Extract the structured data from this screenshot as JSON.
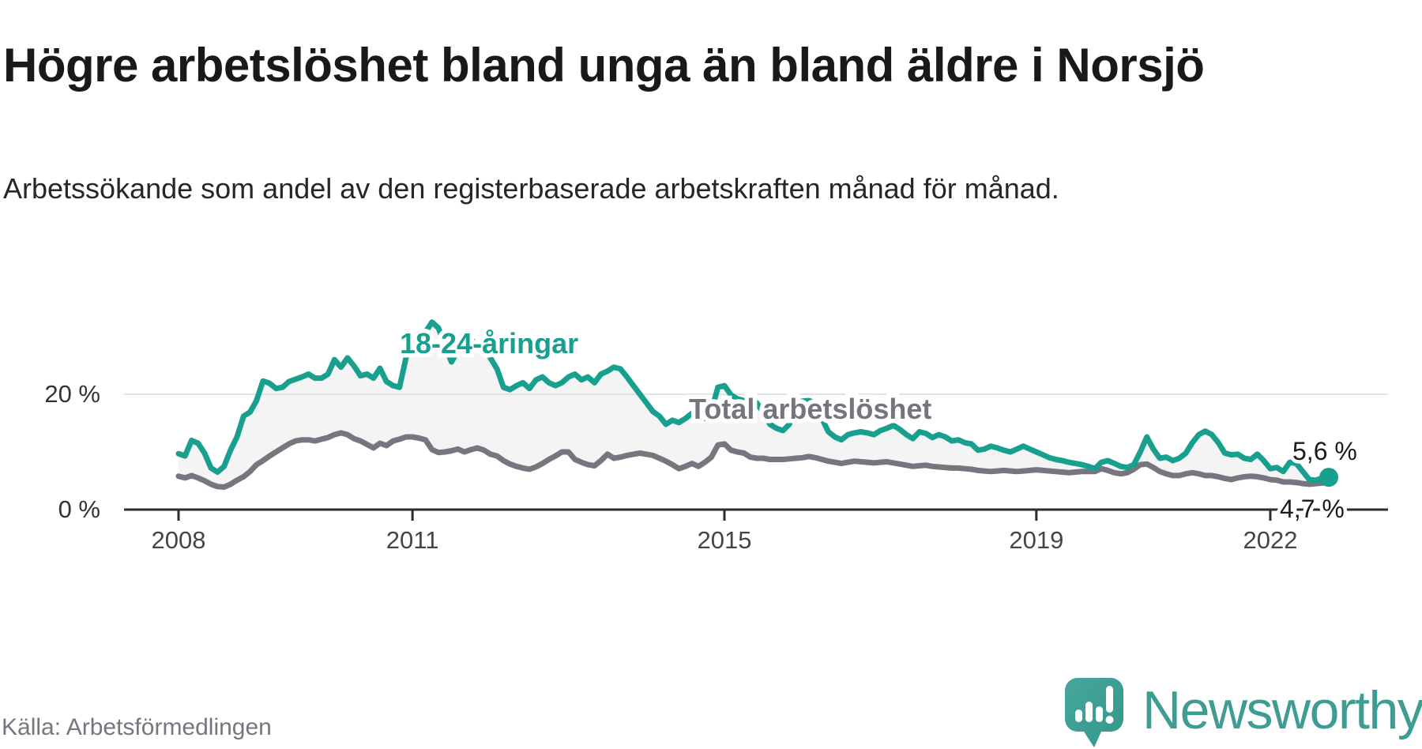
{
  "header": {
    "title": "Högre arbetslöshet bland unga än bland äldre i Norsjö",
    "subtitle": "Arbetssökande som andel av den registerbaserade arbetskraften månad för månad."
  },
  "footer": {
    "source": "Källa: Arbetsförmedlingen",
    "brand": "Newsworthy",
    "brand_color": "#3e9c93"
  },
  "chart_data": {
    "type": "line",
    "title": "Högre arbetslöshet bland unga än bland äldre i Norsjö",
    "unit": "%",
    "frequency": "monthly",
    "x_start": {
      "year": 2008,
      "month": 1
    },
    "x_end": {
      "year": 2022,
      "month": 10
    },
    "x_ticks": [
      2008,
      2011,
      2015,
      2019,
      2022
    ],
    "x_tick_labels": [
      "2008",
      "2011",
      "2015",
      "2019",
      "2022"
    ],
    "y_ticks": [
      {
        "label": "20 %",
        "value": 20
      },
      {
        "label": "0 %",
        "value": 0
      }
    ],
    "ylim": [
      0,
      34
    ],
    "grid": "single horizontal gridline at 20 %",
    "legend_position": "inline labels on lines",
    "style": {
      "band_fill": "#f4f4f5",
      "grid_color": "#e1e1e1",
      "axis_color": "#2d2d2d"
    },
    "series": [
      {
        "name": "18-24-åringar",
        "color": "#17a08e",
        "end_label": "5,6 %",
        "end_value": 5.6,
        "values": [
          9.7,
          9.3,
          12.0,
          11.5,
          9.8,
          7.2,
          6.5,
          7.5,
          10.3,
          12.6,
          16.2,
          16.9,
          18.9,
          22.3,
          21.9,
          21.0,
          21.2,
          22.2,
          22.6,
          23.0,
          23.5,
          22.8,
          22.8,
          23.5,
          26.0,
          24.7,
          26.3,
          24.9,
          23.2,
          23.5,
          22.8,
          24.5,
          22.2,
          21.5,
          21.2,
          26.3,
          29.8,
          30.3,
          30.8,
          32.5,
          31.5,
          28.5,
          25.6,
          27.6,
          28.5,
          29.3,
          28.8,
          28.1,
          26.3,
          24.4,
          21.2,
          20.8,
          21.5,
          22.0,
          21.0,
          22.5,
          23.0,
          22.0,
          21.5,
          22.0,
          23.0,
          23.5,
          22.5,
          23.0,
          22.0,
          23.5,
          24.0,
          24.7,
          24.4,
          23.0,
          21.5,
          20.0,
          18.5,
          17.0,
          16.2,
          14.8,
          15.5,
          15.1,
          15.8,
          16.7,
          16.0,
          15.8,
          17.1,
          21.2,
          21.5,
          19.9,
          19.2,
          18.9,
          18.8,
          18.5,
          16.8,
          14.8,
          14.1,
          13.7,
          14.8,
          18.5,
          18.8,
          18.9,
          18.5,
          15.8,
          13.5,
          12.6,
          12.1,
          13.0,
          13.3,
          13.5,
          13.3,
          13.0,
          13.7,
          14.1,
          14.6,
          13.9,
          13.0,
          12.3,
          13.5,
          13.2,
          12.5,
          13.0,
          12.6,
          11.9,
          12.1,
          11.6,
          11.4,
          10.3,
          10.5,
          11.0,
          10.7,
          10.3,
          10.0,
          10.5,
          11.0,
          10.5,
          10.0,
          9.5,
          9.0,
          8.7,
          8.5,
          8.2,
          8.0,
          7.8,
          7.5,
          7.1,
          8.2,
          8.5,
          8.0,
          7.5,
          7.3,
          7.8,
          10.0,
          12.6,
          10.5,
          8.9,
          9.1,
          8.5,
          8.9,
          9.8,
          11.6,
          13.0,
          13.6,
          13.0,
          11.6,
          9.8,
          9.5,
          9.6,
          8.9,
          8.7,
          9.6,
          8.5,
          7.1,
          7.3,
          6.6,
          8.2,
          8.0,
          6.6,
          5.2,
          5.1,
          5.5,
          5.6
        ]
      },
      {
        "name": "Total arbetslöshet",
        "color": "#76767e",
        "end_label": "4,7 %",
        "end_value": 4.7,
        "values": [
          5.8,
          5.5,
          5.9,
          5.5,
          5.0,
          4.4,
          4.0,
          3.9,
          4.4,
          5.1,
          5.7,
          6.6,
          7.8,
          8.5,
          9.3,
          10.0,
          10.7,
          11.4,
          11.9,
          12.1,
          12.1,
          11.9,
          12.2,
          12.5,
          13.0,
          13.3,
          13.0,
          12.3,
          11.9,
          11.3,
          10.7,
          11.5,
          11.1,
          11.9,
          12.2,
          12.6,
          12.6,
          12.4,
          12.1,
          10.4,
          9.9,
          10.0,
          10.2,
          10.5,
          10.0,
          10.4,
          10.7,
          10.3,
          9.6,
          9.3,
          8.5,
          7.9,
          7.5,
          7.2,
          7.0,
          7.4,
          8.0,
          8.7,
          9.3,
          10.0,
          10.0,
          8.7,
          8.2,
          7.8,
          7.6,
          8.5,
          9.6,
          8.9,
          9.1,
          9.4,
          9.6,
          9.8,
          9.6,
          9.4,
          8.9,
          8.4,
          7.8,
          7.1,
          7.5,
          8.0,
          7.5,
          8.2,
          9.1,
          11.2,
          11.4,
          10.3,
          10.0,
          9.8,
          9.1,
          8.9,
          8.9,
          8.7,
          8.7,
          8.7,
          8.8,
          8.9,
          9.0,
          9.2,
          9.0,
          8.7,
          8.4,
          8.2,
          8.0,
          8.2,
          8.4,
          8.3,
          8.2,
          8.1,
          8.2,
          8.3,
          8.1,
          7.9,
          7.7,
          7.5,
          7.6,
          7.7,
          7.5,
          7.4,
          7.3,
          7.2,
          7.2,
          7.1,
          7.0,
          6.8,
          6.7,
          6.6,
          6.7,
          6.8,
          6.7,
          6.6,
          6.7,
          6.8,
          6.9,
          6.8,
          6.7,
          6.6,
          6.5,
          6.4,
          6.5,
          6.6,
          6.6,
          6.6,
          7.1,
          6.8,
          6.4,
          6.2,
          6.4,
          7.0,
          7.8,
          7.9,
          7.3,
          6.6,
          6.2,
          5.9,
          5.9,
          6.2,
          6.4,
          6.2,
          5.9,
          5.9,
          5.7,
          5.4,
          5.2,
          5.5,
          5.7,
          5.8,
          5.7,
          5.5,
          5.2,
          5.1,
          4.8,
          4.8,
          4.7,
          4.5,
          4.4,
          4.5,
          4.6,
          4.7
        ]
      }
    ]
  }
}
